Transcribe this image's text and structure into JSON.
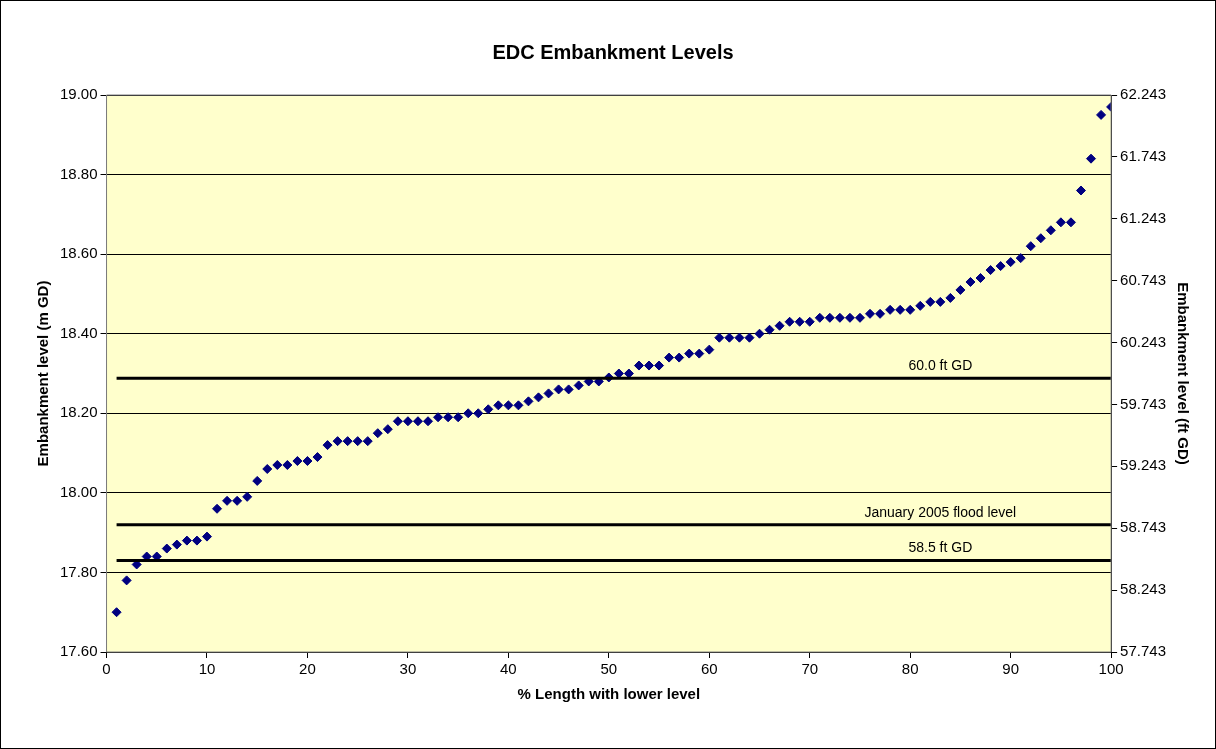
{
  "chart_data": {
    "type": "scatter",
    "title": "EDC Embankment Levels",
    "xlabel": "% Length with lower level",
    "ylabel": "Embankment level (m GD)",
    "y2label": "Embankment level (ft GD)",
    "x": [
      1,
      2,
      3,
      4,
      5,
      6,
      7,
      8,
      9,
      10,
      11,
      12,
      13,
      14,
      15,
      16,
      17,
      18,
      19,
      20,
      21,
      22,
      23,
      24,
      25,
      26,
      27,
      28,
      29,
      30,
      31,
      32,
      33,
      34,
      35,
      36,
      37,
      38,
      39,
      40,
      41,
      42,
      43,
      44,
      45,
      46,
      47,
      48,
      49,
      50,
      51,
      52,
      53,
      54,
      55,
      56,
      57,
      58,
      59,
      60,
      61,
      62,
      63,
      64,
      65,
      66,
      67,
      68,
      69,
      70,
      71,
      72,
      73,
      74,
      75,
      76,
      77,
      78,
      79,
      80,
      81,
      82,
      83,
      84,
      85,
      86,
      87,
      88,
      89,
      90,
      91,
      92,
      93,
      94,
      95,
      96,
      97,
      98,
      99,
      100
    ],
    "series": [
      {
        "color": "#000080",
        "values": [
          17.7,
          17.78,
          17.82,
          17.84,
          17.84,
          17.86,
          17.87,
          17.88,
          17.88,
          17.89,
          17.96,
          17.98,
          17.98,
          17.99,
          18.03,
          18.06,
          18.07,
          18.07,
          18.08,
          18.08,
          18.09,
          18.12,
          18.13,
          18.13,
          18.13,
          18.13,
          18.15,
          18.16,
          18.18,
          18.18,
          18.18,
          18.18,
          18.19,
          18.19,
          18.19,
          18.2,
          18.2,
          18.21,
          18.22,
          18.22,
          18.22,
          18.23,
          18.24,
          18.25,
          18.26,
          18.26,
          18.27,
          18.28,
          18.28,
          18.29,
          18.3,
          18.3,
          18.32,
          18.32,
          18.32,
          18.34,
          18.34,
          18.35,
          18.35,
          18.36,
          18.39,
          18.39,
          18.39,
          18.39,
          18.4,
          18.41,
          18.42,
          18.43,
          18.43,
          18.43,
          18.44,
          18.44,
          18.44,
          18.44,
          18.44,
          18.45,
          18.45,
          18.46,
          18.46,
          18.46,
          18.47,
          18.48,
          18.48,
          18.49,
          18.51,
          18.53,
          18.54,
          18.56,
          18.57,
          18.58,
          18.59,
          18.62,
          18.64,
          18.66,
          18.68,
          18.68,
          18.76,
          18.84,
          18.95,
          18.97
        ]
      }
    ],
    "xlim": [
      0,
      100
    ],
    "xticks": [
      0,
      10,
      20,
      30,
      40,
      50,
      60,
      70,
      80,
      90,
      100
    ],
    "ylim": [
      17.6,
      19
    ],
    "yticks": [
      {
        "value": 17.6,
        "label": "17.60"
      },
      {
        "value": 17.8,
        "label": "17.80"
      },
      {
        "value": 18,
        "label": "18.00"
      },
      {
        "value": 18.2,
        "label": "18.20"
      },
      {
        "value": 18.4,
        "label": "18.40"
      },
      {
        "value": 18.6,
        "label": "18.60"
      },
      {
        "value": 18.8,
        "label": "18.80"
      },
      {
        "value": 19,
        "label": "19.00"
      }
    ],
    "y2lim": [
      57.743,
      62.243
    ],
    "y2ticks": [
      57.743,
      58.243,
      58.743,
      59.243,
      59.743,
      60.243,
      60.743,
      61.243,
      61.743,
      62.243
    ],
    "ref_lines": [
      {
        "axis": "y",
        "value": 18.288,
        "label": "60.0 ft GD",
        "color": "#000000"
      },
      {
        "axis": "y",
        "value": 17.92,
        "label": "January 2005 flood level",
        "color": "#000000"
      },
      {
        "axis": "y",
        "value": 17.83,
        "label": "58.5 ft GD",
        "color": "#000000"
      }
    ],
    "grid": "y",
    "marker": "diamond",
    "legend": false
  }
}
